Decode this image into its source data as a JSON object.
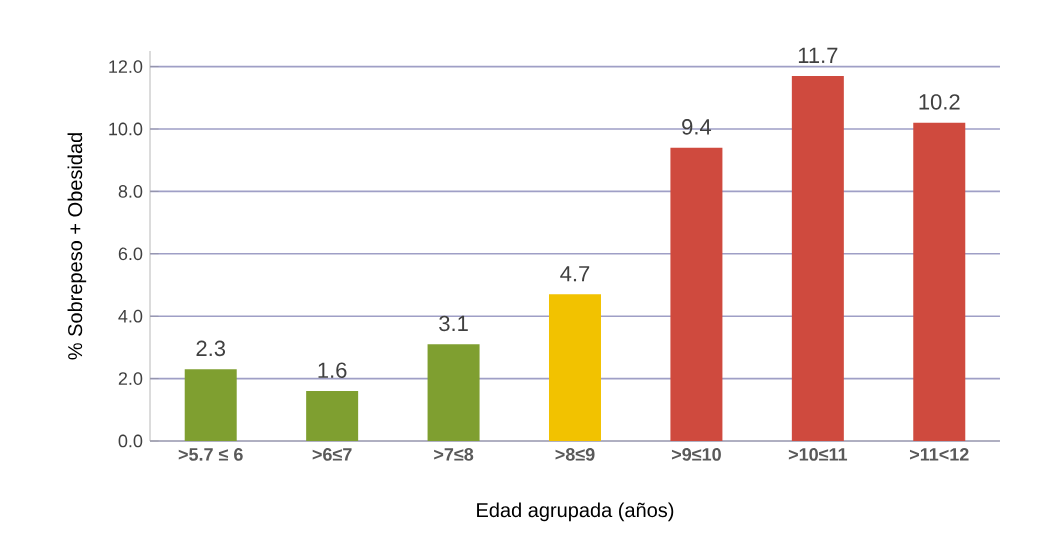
{
  "chart_data": {
    "type": "bar",
    "xlabel": "Edad agrupada (años)",
    "ylabel": "%  Sobrepeso + Obesidad",
    "categories": [
      ">5.7 ≤ 6",
      ">6≤7",
      ">7≤8",
      ">8≤9",
      ">9≤10",
      ">10≤11",
      ">11<12"
    ],
    "values": [
      2.3,
      1.6,
      3.1,
      4.7,
      9.4,
      11.7,
      10.2
    ],
    "colors": [
      "#7f9f30",
      "#7f9f30",
      "#7f9f30",
      "#f2c200",
      "#cf4a3e",
      "#cf4a3e",
      "#cf4a3e"
    ],
    "ylim": [
      0,
      12.5
    ],
    "yticks": [
      {
        "value": 0,
        "label": "0.0"
      },
      {
        "value": 2,
        "label": "2.0"
      },
      {
        "value": 4,
        "label": "4.0"
      },
      {
        "value": 6,
        "label": "6.0"
      },
      {
        "value": 8,
        "label": "8.0"
      },
      {
        "value": 10,
        "label": "10.0"
      },
      {
        "value": 12,
        "label": "12.0"
      }
    ],
    "grid": "y",
    "data_labels": true
  }
}
